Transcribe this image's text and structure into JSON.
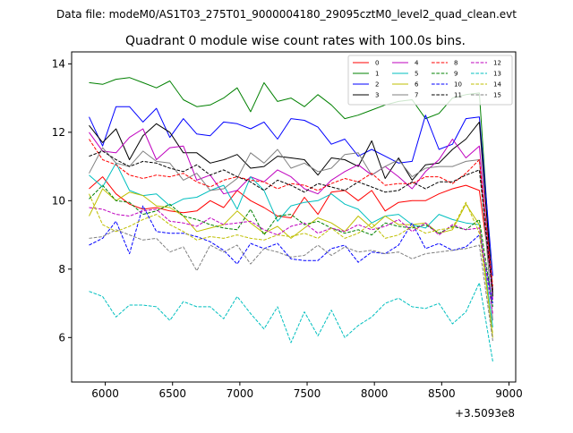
{
  "figure_caption": "Data file: modeM0/AS1T03_275T01_9000004180_29095cztM0_level2_quad_clean.evt",
  "chart_data": {
    "type": "line",
    "title": "Quadrant 0 module wise count rates with 100.0s bins.",
    "xlabel": "",
    "ylabel": "",
    "x_offset_label": "+3.5093e8",
    "xlim": [
      5750,
      9050
    ],
    "ylim": [
      4.7,
      14.35
    ],
    "xticks": [
      6000,
      6500,
      7000,
      7500,
      8000,
      8500,
      9000
    ],
    "yticks": [
      6,
      8,
      10,
      12,
      14
    ],
    "grid": false,
    "legend_position": "top-right",
    "legend_columns": 4,
    "x": [
      5880,
      5980,
      6080,
      6180,
      6280,
      6380,
      6480,
      6580,
      6680,
      6780,
      6880,
      6980,
      7080,
      7180,
      7280,
      7380,
      7480,
      7580,
      7680,
      7780,
      7880,
      7980,
      8080,
      8180,
      8280,
      8380,
      8480,
      8580,
      8680,
      8780,
      8880
    ],
    "series": [
      {
        "name": "0",
        "color": "#ff0000",
        "dash": false,
        "values": [
          10.35,
          10.7,
          10.2,
          9.9,
          9.75,
          9.8,
          9.7,
          9.65,
          9.7,
          10.0,
          9.8,
          10.3,
          10.0,
          9.8,
          9.55,
          9.5,
          10.1,
          9.6,
          10.25,
          10.3,
          10.0,
          10.3,
          9.7,
          9.95,
          10.0,
          10.0,
          10.2,
          10.35,
          10.45,
          10.3,
          7.4
        ]
      },
      {
        "name": "1",
        "color": "#008000",
        "dash": false,
        "values": [
          13.45,
          13.4,
          13.55,
          13.6,
          13.45,
          13.3,
          13.5,
          12.95,
          12.75,
          12.8,
          13.0,
          13.3,
          12.6,
          13.45,
          12.9,
          13.0,
          12.75,
          13.1,
          12.8,
          12.4,
          12.5,
          12.65,
          12.8,
          12.9,
          12.95,
          12.4,
          12.55,
          13.0,
          13.1,
          13.15,
          7.2
        ]
      },
      {
        "name": "2",
        "color": "#0000ff",
        "dash": false,
        "values": [
          12.45,
          11.6,
          12.75,
          12.75,
          12.3,
          12.7,
          11.85,
          12.4,
          11.95,
          11.9,
          12.3,
          12.25,
          12.1,
          12.3,
          11.8,
          12.4,
          12.35,
          12.15,
          11.65,
          11.8,
          11.3,
          11.5,
          11.3,
          11.1,
          11.15,
          12.5,
          11.5,
          11.65,
          12.4,
          12.45,
          7.8
        ]
      },
      {
        "name": "3",
        "color": "#000000",
        "dash": false,
        "values": [
          12.2,
          11.7,
          12.1,
          11.2,
          11.9,
          12.25,
          12.0,
          11.4,
          11.4,
          11.1,
          11.2,
          11.35,
          10.95,
          11.0,
          11.3,
          11.25,
          11.2,
          10.75,
          11.25,
          11.2,
          11.0,
          11.75,
          10.65,
          11.25,
          10.6,
          11.05,
          11.1,
          11.5,
          11.8,
          12.3,
          7.3
        ]
      },
      {
        "name": "4",
        "color": "#bf00bf",
        "dash": false,
        "values": [
          12.0,
          11.45,
          11.4,
          11.85,
          12.1,
          11.2,
          11.55,
          11.6,
          10.6,
          10.75,
          10.2,
          10.3,
          10.7,
          10.55,
          10.9,
          10.7,
          10.35,
          10.2,
          10.6,
          10.85,
          11.05,
          10.75,
          11.0,
          10.7,
          10.35,
          10.85,
          11.2,
          11.8,
          11.25,
          11.6,
          7.1
        ]
      },
      {
        "name": "5",
        "color": "#00bfbf",
        "dash": false,
        "values": [
          10.75,
          10.4,
          11.1,
          10.3,
          10.15,
          10.2,
          9.85,
          10.05,
          10.1,
          10.3,
          10.45,
          9.75,
          10.7,
          10.3,
          9.4,
          9.85,
          9.95,
          10.0,
          10.2,
          9.9,
          9.75,
          9.35,
          9.55,
          9.6,
          9.3,
          9.2,
          9.6,
          9.45,
          9.35,
          9.3,
          6.3
        ]
      },
      {
        "name": "6",
        "color": "#bfbf00",
        "dash": false,
        "values": [
          9.55,
          10.35,
          10.0,
          10.25,
          10.15,
          9.85,
          9.8,
          9.55,
          9.1,
          9.2,
          9.3,
          9.7,
          9.35,
          9.05,
          9.25,
          8.9,
          9.2,
          9.5,
          9.35,
          9.1,
          9.55,
          9.2,
          9.55,
          9.3,
          9.3,
          9.35,
          9.05,
          9.15,
          9.9,
          9.3,
          6.0
        ]
      },
      {
        "name": "7",
        "color": "#808080",
        "dash": false,
        "values": [
          10.8,
          11.55,
          11.1,
          11.0,
          11.45,
          11.15,
          11.1,
          10.6,
          10.8,
          10.3,
          10.35,
          10.65,
          11.4,
          11.1,
          11.5,
          10.95,
          11.1,
          10.85,
          10.95,
          11.35,
          11.4,
          10.75,
          11.0,
          11.2,
          10.7,
          10.95,
          11.0,
          11.0,
          11.15,
          11.2,
          6.5
        ]
      },
      {
        "name": "8",
        "color": "#ff0000",
        "dash": true,
        "values": [
          11.8,
          11.2,
          11.05,
          10.75,
          10.65,
          10.75,
          10.7,
          10.8,
          10.55,
          10.4,
          10.6,
          10.7,
          10.6,
          10.55,
          10.35,
          10.5,
          10.45,
          10.3,
          10.5,
          10.65,
          10.55,
          10.8,
          10.45,
          10.5,
          10.5,
          10.7,
          10.7,
          10.5,
          10.8,
          11.2,
          7.5
        ]
      },
      {
        "name": "9",
        "color": "#008000",
        "dash": true,
        "values": [
          10.05,
          10.45,
          10.0,
          9.95,
          9.6,
          9.7,
          9.9,
          9.55,
          9.45,
          9.3,
          9.2,
          9.15,
          9.75,
          9.0,
          9.55,
          9.6,
          9.3,
          9.4,
          9.2,
          9.05,
          9.15,
          9.0,
          9.35,
          9.25,
          9.2,
          9.3,
          9.05,
          9.25,
          9.15,
          9.45,
          6.9
        ]
      },
      {
        "name": "10",
        "color": "#0000ff",
        "dash": true,
        "values": [
          8.7,
          8.9,
          9.4,
          8.45,
          9.85,
          9.1,
          9.05,
          9.05,
          8.95,
          8.8,
          8.55,
          8.15,
          8.75,
          8.6,
          8.75,
          8.3,
          8.25,
          8.25,
          8.6,
          8.7,
          8.2,
          8.5,
          8.45,
          8.7,
          9.35,
          8.6,
          8.75,
          8.55,
          8.65,
          9.0,
          7.0
        ]
      },
      {
        "name": "11",
        "color": "#000000",
        "dash": true,
        "values": [
          11.3,
          11.45,
          11.2,
          11.0,
          11.15,
          11.1,
          10.95,
          10.85,
          11.05,
          10.75,
          10.9,
          10.7,
          10.55,
          10.3,
          10.6,
          10.45,
          10.25,
          10.5,
          10.4,
          10.3,
          10.55,
          10.4,
          10.25,
          10.3,
          10.55,
          10.35,
          10.55,
          10.55,
          10.75,
          10.9,
          7.2
        ]
      },
      {
        "name": "12",
        "color": "#bf00bf",
        "dash": true,
        "values": [
          9.8,
          9.75,
          9.6,
          9.55,
          9.7,
          9.75,
          9.4,
          9.35,
          9.25,
          9.5,
          9.3,
          9.35,
          9.4,
          9.15,
          9.0,
          9.25,
          9.35,
          9.05,
          9.2,
          9.1,
          9.3,
          9.15,
          9.25,
          9.45,
          9.1,
          9.35,
          9.0,
          9.3,
          9.15,
          9.2,
          6.7
        ]
      },
      {
        "name": "13",
        "color": "#00bfbf",
        "dash": true,
        "values": [
          7.35,
          7.2,
          6.6,
          6.95,
          6.95,
          6.9,
          6.5,
          7.05,
          6.9,
          6.9,
          6.55,
          7.2,
          6.7,
          6.25,
          6.9,
          5.85,
          6.75,
          6.05,
          6.8,
          6.0,
          6.35,
          6.6,
          7.0,
          7.15,
          6.9,
          6.85,
          7.0,
          6.4,
          6.75,
          7.6,
          5.3
        ]
      },
      {
        "name": "14",
        "color": "#bfbf00",
        "dash": true,
        "values": [
          10.2,
          9.3,
          9.1,
          9.25,
          9.45,
          9.6,
          9.3,
          9.1,
          8.85,
          8.95,
          8.9,
          9.0,
          8.9,
          8.85,
          9.0,
          8.95,
          9.05,
          8.9,
          9.2,
          8.9,
          9.05,
          9.35,
          8.9,
          9.0,
          9.25,
          9.05,
          9.15,
          9.2,
          9.95,
          9.05,
          6.1
        ]
      },
      {
        "name": "15",
        "color": "#808080",
        "dash": true,
        "values": [
          8.9,
          8.95,
          9.15,
          9.0,
          8.85,
          8.9,
          8.5,
          8.65,
          7.95,
          8.7,
          8.5,
          8.7,
          8.15,
          8.6,
          8.5,
          8.35,
          8.4,
          8.7,
          8.4,
          8.65,
          8.5,
          8.55,
          8.45,
          8.5,
          8.3,
          8.45,
          8.5,
          8.55,
          8.6,
          8.7,
          5.9
        ]
      }
    ]
  }
}
